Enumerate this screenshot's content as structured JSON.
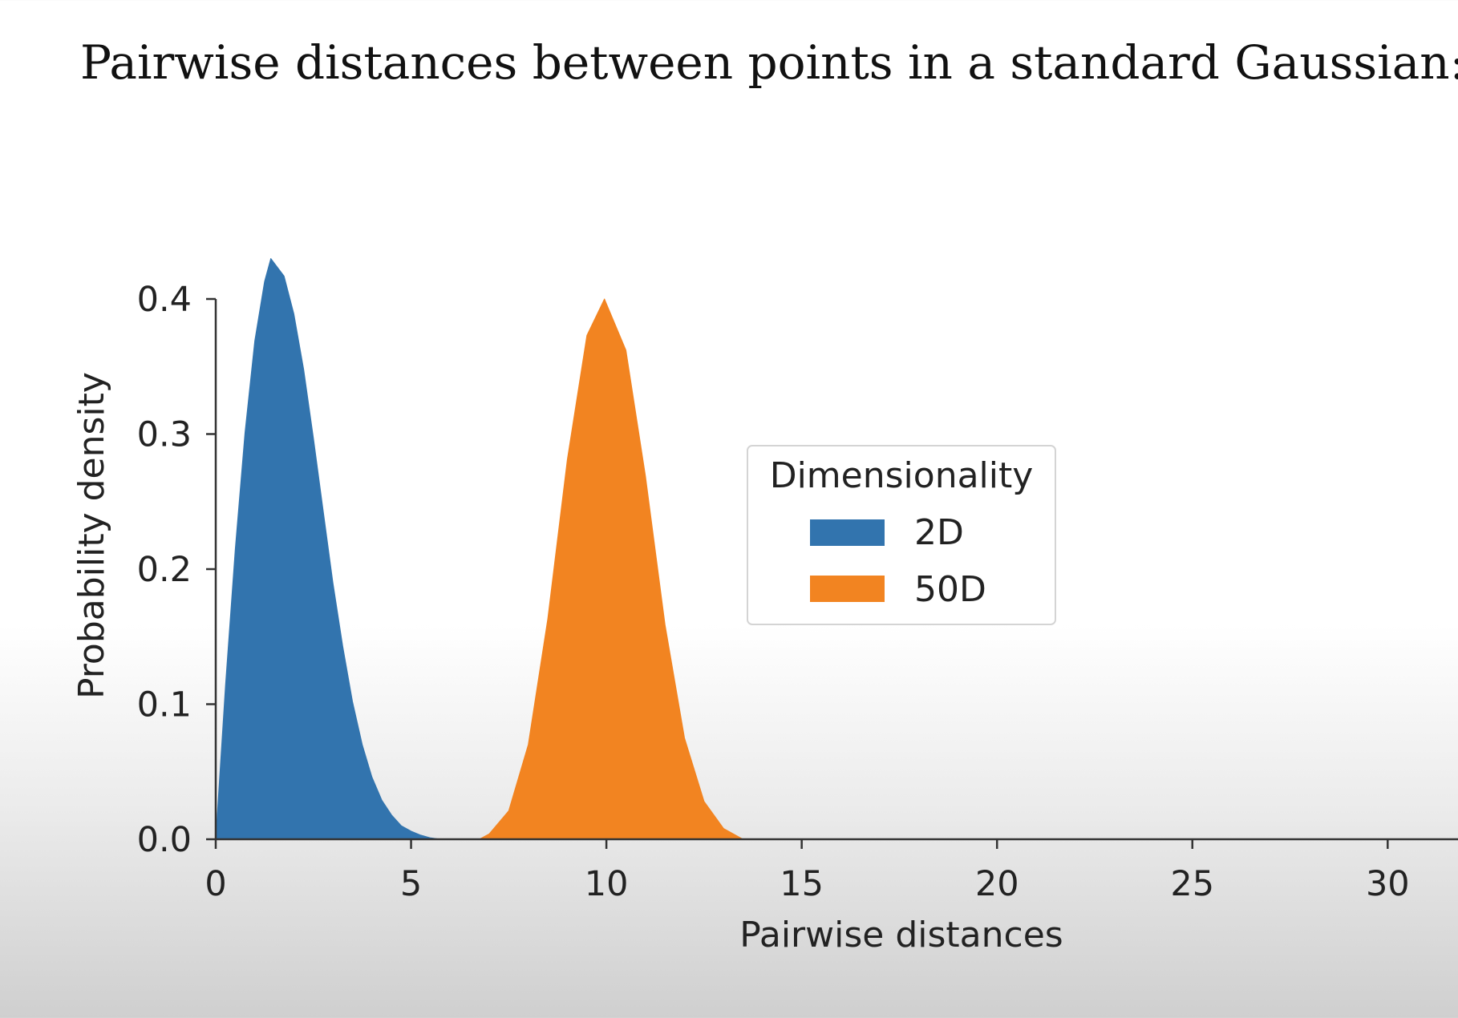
{
  "slide": {
    "title": "Pairwise distances between points in a standard Gaussian:"
  },
  "chart_data": {
    "type": "area",
    "title": "",
    "xlabel": "Pairwise distances",
    "ylabel": "Probability density",
    "xlim": [
      0,
      31.8
    ],
    "ylim": [
      0,
      0.4
    ],
    "x_ticks": [
      0,
      5,
      10,
      15,
      20,
      25,
      30
    ],
    "x_tick_labels": [
      "0",
      "5",
      "10",
      "15",
      "20",
      "25",
      "30"
    ],
    "y_ticks": [
      0.0,
      0.1,
      0.2,
      0.3,
      0.4
    ],
    "y_tick_labels": [
      "0.0",
      "0.1",
      "0.2",
      "0.3",
      "0.4"
    ],
    "grid": false,
    "legend": {
      "title": "Dimensionality",
      "placement": "center"
    },
    "series": [
      {
        "name": "2D",
        "color": "#3274ae",
        "x": [
          0.0,
          0.25,
          0.5,
          0.75,
          1.0,
          1.25,
          1.41,
          1.75,
          2.0,
          2.25,
          2.5,
          2.75,
          3.0,
          3.25,
          3.5,
          3.75,
          4.0,
          4.25,
          4.5,
          4.75,
          5.0,
          5.25,
          5.5,
          5.75
        ],
        "values": [
          0.0,
          0.114,
          0.215,
          0.301,
          0.369,
          0.413,
          0.43,
          0.417,
          0.389,
          0.348,
          0.297,
          0.243,
          0.19,
          0.143,
          0.102,
          0.07,
          0.046,
          0.029,
          0.018,
          0.01,
          0.006,
          0.003,
          0.001,
          0.0
        ]
      },
      {
        "name": "50D",
        "color": "#f28421",
        "x": [
          6.75,
          7.0,
          7.5,
          8.0,
          8.5,
          9.0,
          9.5,
          9.95,
          10.5,
          11.0,
          11.5,
          12.0,
          12.5,
          13.0,
          13.5
        ],
        "values": [
          0.0,
          0.004,
          0.021,
          0.07,
          0.163,
          0.281,
          0.373,
          0.4,
          0.362,
          0.269,
          0.159,
          0.075,
          0.028,
          0.008,
          0.0
        ]
      }
    ]
  }
}
